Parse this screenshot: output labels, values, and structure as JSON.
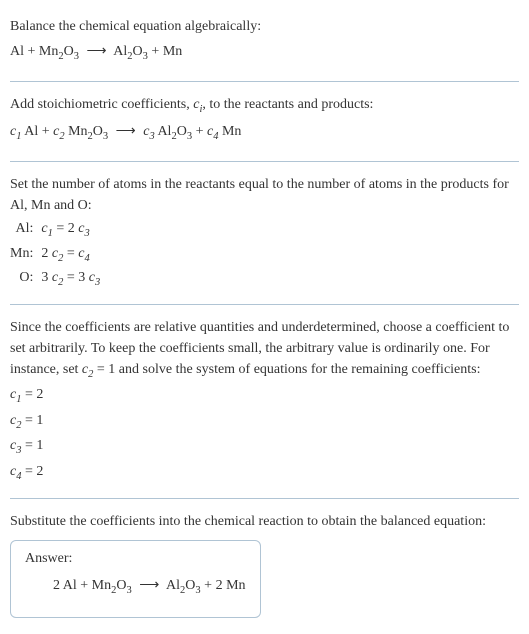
{
  "colors": {
    "text": "#333333",
    "divider": "#b0c4d4",
    "background": "#ffffff"
  },
  "typography": {
    "font_family": "Georgia, Times New Roman, serif",
    "base_size_pt": 11
  },
  "section1": {
    "title": "Balance the chemical equation algebraically:",
    "equation": {
      "lhs": [
        {
          "text": "Al"
        },
        {
          "text": "Mn",
          "sub": "2",
          "tail": "O",
          "sub2": "3"
        }
      ],
      "rhs": [
        {
          "text": "Al",
          "sub": "2",
          "tail": "O",
          "sub2": "3"
        },
        {
          "text": "Mn"
        }
      ]
    }
  },
  "section2": {
    "title_pre": "Add stoichiometric coefficients, ",
    "title_var": "c",
    "title_var_sub": "i",
    "title_post": ", to the reactants and products:",
    "equation": {
      "terms_lhs": [
        {
          "coef": "c",
          "coef_sub": "1",
          "species": "Al"
        },
        {
          "coef": "c",
          "coef_sub": "2",
          "species": "Mn",
          "sub": "2",
          "tail": "O",
          "sub2": "3"
        }
      ],
      "terms_rhs": [
        {
          "coef": "c",
          "coef_sub": "3",
          "species": "Al",
          "sub": "2",
          "tail": "O",
          "sub2": "3"
        },
        {
          "coef": "c",
          "coef_sub": "4",
          "species": "Mn"
        }
      ]
    }
  },
  "section3": {
    "title": "Set the number of atoms in the reactants equal to the number of atoms in the products for Al, Mn and O:",
    "rows": [
      {
        "label": "Al:",
        "lhs_coef": "",
        "lhs_var": "c",
        "lhs_sub": "1",
        "rhs_coef": "2 ",
        "rhs_var": "c",
        "rhs_sub": "3"
      },
      {
        "label": "Mn:",
        "lhs_coef": "2 ",
        "lhs_var": "c",
        "lhs_sub": "2",
        "rhs_coef": "",
        "rhs_var": "c",
        "rhs_sub": "4"
      },
      {
        "label": "O:",
        "lhs_coef": "3 ",
        "lhs_var": "c",
        "lhs_sub": "2",
        "rhs_coef": "3 ",
        "rhs_var": "c",
        "rhs_sub": "3"
      }
    ]
  },
  "section4": {
    "title_pre": "Since the coefficients are relative quantities and underdetermined, choose a coefficient to set arbitrarily. To keep the coefficients small, the arbitrary value is ordinarily one. For instance, set ",
    "title_var": "c",
    "title_var_sub": "2",
    "title_mid": " = 1",
    "title_post": " and solve the system of equations for the remaining coefficients:",
    "assignments": [
      {
        "var": "c",
        "sub": "1",
        "val": "2"
      },
      {
        "var": "c",
        "sub": "2",
        "val": "1"
      },
      {
        "var": "c",
        "sub": "3",
        "val": "1"
      },
      {
        "var": "c",
        "sub": "4",
        "val": "2"
      }
    ]
  },
  "section5": {
    "title": "Substitute the coefficients into the chemical reaction to obtain the balanced equation:",
    "answer_label": "Answer:",
    "equation": {
      "lhs": [
        {
          "coef": "2 ",
          "text": "Al"
        },
        {
          "coef": "",
          "text": "Mn",
          "sub": "2",
          "tail": "O",
          "sub2": "3"
        }
      ],
      "rhs": [
        {
          "coef": "",
          "text": "Al",
          "sub": "2",
          "tail": "O",
          "sub2": "3"
        },
        {
          "coef": "2 ",
          "text": "Mn"
        }
      ]
    }
  },
  "arrow": "⟶"
}
